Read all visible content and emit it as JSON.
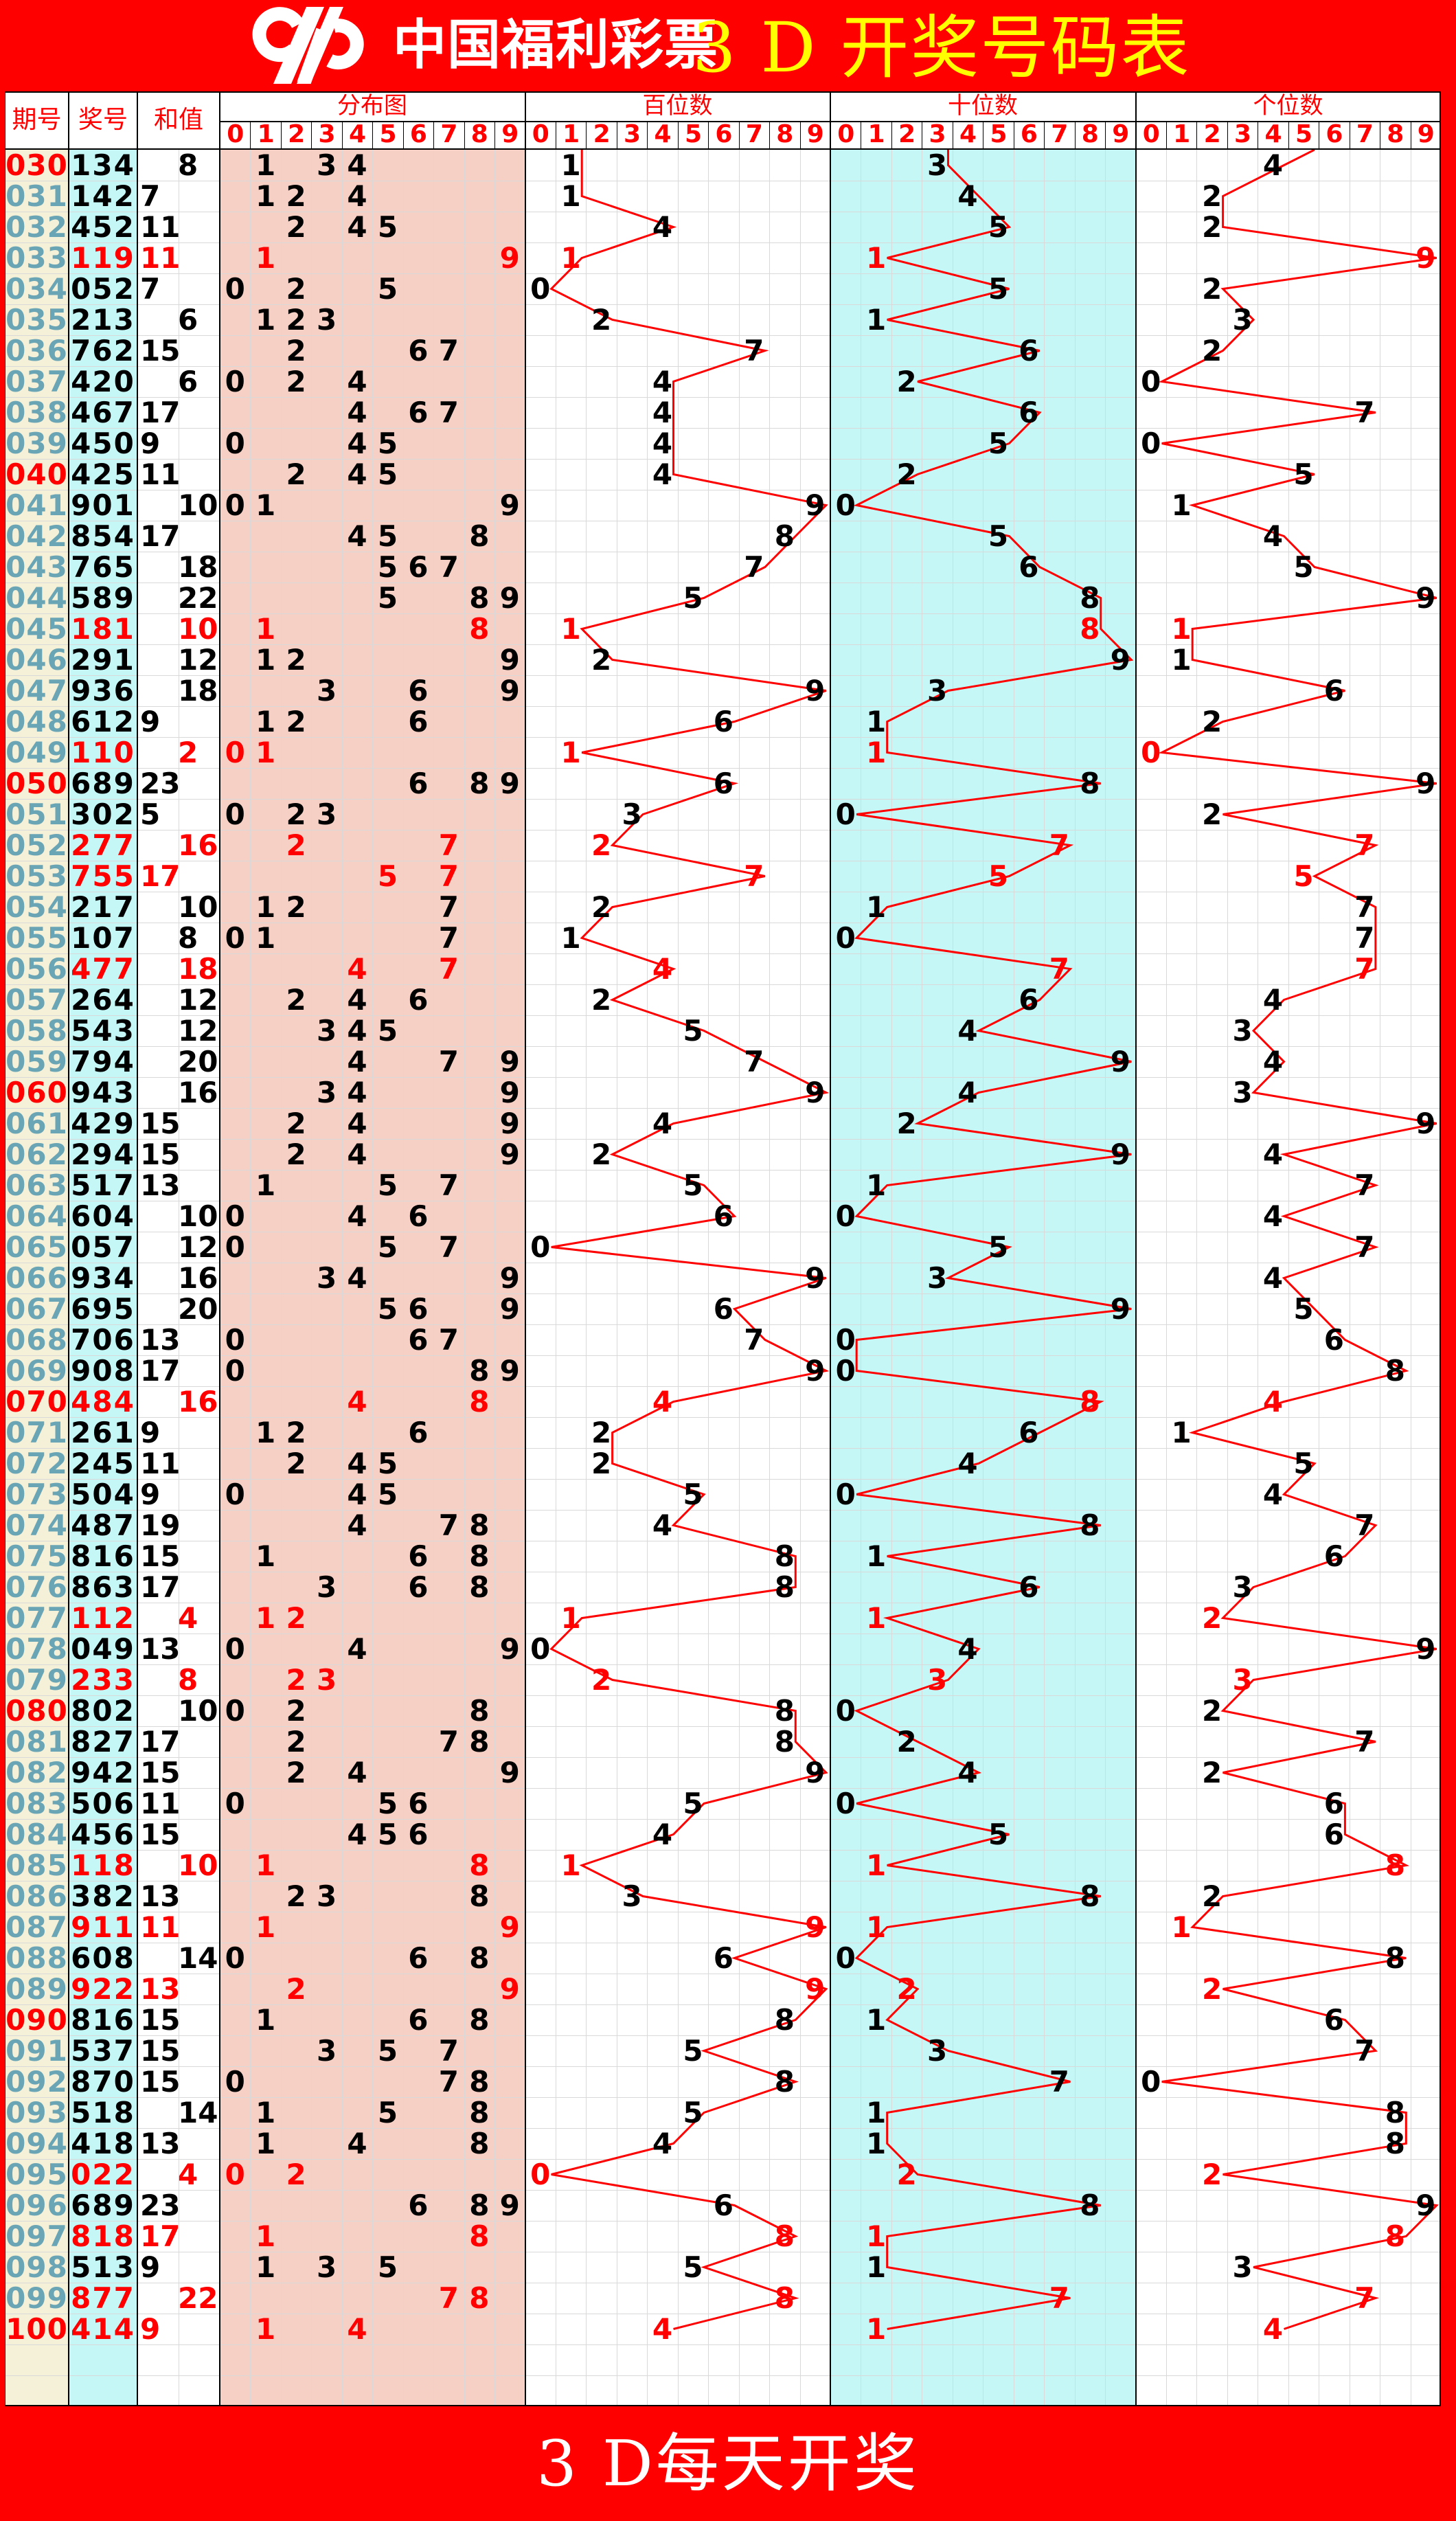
{
  "banner": {
    "brand": "中国福利彩票",
    "title": "3 D 开奖号码表"
  },
  "footer": {
    "text": "3 D每天开奖"
  },
  "columns": {
    "period": "期号",
    "number": "奖号",
    "sum": "和值",
    "dist": "分布图",
    "hundreds": "百位数",
    "tens": "十位数",
    "units": "个位数"
  },
  "digit_headers": [
    "0",
    "1",
    "2",
    "3",
    "4",
    "5",
    "6",
    "7",
    "8",
    "9"
  ],
  "colors": {
    "banner_red": "#ff0000",
    "title_yellow": "#ffff00",
    "special_red": "#ff0000",
    "period_teal": "#6aa5b5",
    "period_bg": "#f5f0d8",
    "number_bg": "#c6f7f7",
    "dist_bg": "#f6d0c4",
    "tens_bg": "#c6f7f7",
    "grid_line": "#d9d9d9",
    "trend_red": "#ff0000",
    "black": "#000000"
  },
  "stub_prev_digits": {
    "hundreds": 1,
    "tens": 3,
    "units": 6
  },
  "rows_format": [
    "period",
    "number",
    "sum"
  ],
  "rows": [
    [
      "030",
      "134",
      8
    ],
    [
      "031",
      "142",
      7
    ],
    [
      "032",
      "452",
      11
    ],
    [
      "033",
      "119",
      11
    ],
    [
      "034",
      "052",
      7
    ],
    [
      "035",
      "213",
      6
    ],
    [
      "036",
      "762",
      15
    ],
    [
      "037",
      "420",
      6
    ],
    [
      "038",
      "467",
      17
    ],
    [
      "039",
      "450",
      9
    ],
    [
      "040",
      "425",
      11
    ],
    [
      "041",
      "901",
      10
    ],
    [
      "042",
      "854",
      17
    ],
    [
      "043",
      "765",
      18
    ],
    [
      "044",
      "589",
      22
    ],
    [
      "045",
      "181",
      10
    ],
    [
      "046",
      "291",
      12
    ],
    [
      "047",
      "936",
      18
    ],
    [
      "048",
      "612",
      9
    ],
    [
      "049",
      "110",
      2
    ],
    [
      "050",
      "689",
      23
    ],
    [
      "051",
      "302",
      5
    ],
    [
      "052",
      "277",
      16
    ],
    [
      "053",
      "755",
      17
    ],
    [
      "054",
      "217",
      10
    ],
    [
      "055",
      "107",
      8
    ],
    [
      "056",
      "477",
      18
    ],
    [
      "057",
      "264",
      12
    ],
    [
      "058",
      "543",
      12
    ],
    [
      "059",
      "794",
      20
    ],
    [
      "060",
      "943",
      16
    ],
    [
      "061",
      "429",
      15
    ],
    [
      "062",
      "294",
      15
    ],
    [
      "063",
      "517",
      13
    ],
    [
      "064",
      "604",
      10
    ],
    [
      "065",
      "057",
      12
    ],
    [
      "066",
      "934",
      16
    ],
    [
      "067",
      "695",
      20
    ],
    [
      "068",
      "706",
      13
    ],
    [
      "069",
      "908",
      17
    ],
    [
      "070",
      "484",
      16
    ],
    [
      "071",
      "261",
      9
    ],
    [
      "072",
      "245",
      11
    ],
    [
      "073",
      "504",
      9
    ],
    [
      "074",
      "487",
      19
    ],
    [
      "075",
      "816",
      15
    ],
    [
      "076",
      "863",
      17
    ],
    [
      "077",
      "112",
      4
    ],
    [
      "078",
      "049",
      13
    ],
    [
      "079",
      "233",
      8
    ],
    [
      "080",
      "802",
      10
    ],
    [
      "081",
      "827",
      17
    ],
    [
      "082",
      "942",
      15
    ],
    [
      "083",
      "506",
      11
    ],
    [
      "084",
      "456",
      15
    ],
    [
      "085",
      "118",
      10
    ],
    [
      "086",
      "382",
      13
    ],
    [
      "087",
      "911",
      11
    ],
    [
      "088",
      "608",
      14
    ],
    [
      "089",
      "922",
      13
    ],
    [
      "090",
      "816",
      15
    ],
    [
      "091",
      "537",
      15
    ],
    [
      "092",
      "870",
      15
    ],
    [
      "093",
      "518",
      14
    ],
    [
      "094",
      "418",
      13
    ],
    [
      "095",
      "022",
      4
    ],
    [
      "096",
      "689",
      23
    ],
    [
      "097",
      "818",
      17
    ],
    [
      "098",
      "513",
      9
    ],
    [
      "099",
      "877",
      22
    ],
    [
      "100",
      "414",
      9
    ]
  ],
  "special_periods": [
    "033",
    "045",
    "049",
    "052",
    "053",
    "056",
    "070",
    "077",
    "079",
    "085",
    "087",
    "089",
    "095",
    "097",
    "099",
    "100"
  ],
  "chart_data": {
    "type": "line",
    "title": "3 D 开奖号码表",
    "categories": [
      "030",
      "031",
      "032",
      "033",
      "034",
      "035",
      "036",
      "037",
      "038",
      "039",
      "040",
      "041",
      "042",
      "043",
      "044",
      "045",
      "046",
      "047",
      "048",
      "049",
      "050",
      "051",
      "052",
      "053",
      "054",
      "055",
      "056",
      "057",
      "058",
      "059",
      "060",
      "061",
      "062",
      "063",
      "064",
      "065",
      "066",
      "067",
      "068",
      "069",
      "070",
      "071",
      "072",
      "073",
      "074",
      "075",
      "076",
      "077",
      "078",
      "079",
      "080",
      "081",
      "082",
      "083",
      "084",
      "085",
      "086",
      "087",
      "088",
      "089",
      "090",
      "091",
      "092",
      "093",
      "094",
      "095",
      "096",
      "097",
      "098",
      "099",
      "100"
    ],
    "series": [
      {
        "name": "百位数",
        "values": [
          1,
          1,
          4,
          1,
          0,
          2,
          7,
          4,
          4,
          4,
          4,
          9,
          8,
          7,
          5,
          1,
          2,
          9,
          6,
          1,
          6,
          3,
          2,
          7,
          2,
          1,
          4,
          2,
          5,
          7,
          9,
          4,
          2,
          5,
          6,
          0,
          9,
          6,
          7,
          9,
          4,
          2,
          2,
          5,
          4,
          8,
          8,
          1,
          0,
          2,
          8,
          8,
          9,
          5,
          4,
          1,
          3,
          9,
          6,
          9,
          8,
          5,
          8,
          5,
          4,
          0,
          6,
          8,
          5,
          8,
          4
        ]
      },
      {
        "name": "十位数",
        "values": [
          3,
          4,
          5,
          1,
          5,
          1,
          6,
          2,
          6,
          5,
          2,
          0,
          5,
          6,
          8,
          8,
          9,
          3,
          1,
          1,
          8,
          0,
          7,
          5,
          1,
          0,
          7,
          6,
          4,
          9,
          4,
          2,
          9,
          1,
          0,
          5,
          3,
          9,
          0,
          0,
          8,
          6,
          4,
          0,
          8,
          1,
          6,
          1,
          4,
          3,
          0,
          2,
          4,
          0,
          5,
          1,
          8,
          1,
          0,
          2,
          1,
          3,
          7,
          1,
          1,
          2,
          8,
          1,
          1,
          7,
          1
        ]
      },
      {
        "name": "个位数",
        "values": [
          4,
          2,
          2,
          9,
          2,
          3,
          2,
          0,
          7,
          0,
          5,
          1,
          4,
          5,
          9,
          1,
          1,
          6,
          2,
          0,
          9,
          2,
          7,
          5,
          7,
          7,
          7,
          4,
          3,
          4,
          3,
          9,
          4,
          7,
          4,
          7,
          4,
          5,
          6,
          8,
          4,
          1,
          5,
          4,
          7,
          6,
          3,
          2,
          9,
          3,
          2,
          7,
          2,
          6,
          6,
          8,
          2,
          1,
          8,
          2,
          6,
          7,
          0,
          8,
          8,
          2,
          9,
          8,
          3,
          7,
          4
        ]
      },
      {
        "name": "和值",
        "values": [
          8,
          7,
          11,
          11,
          7,
          6,
          15,
          6,
          17,
          9,
          11,
          10,
          17,
          18,
          22,
          10,
          12,
          18,
          9,
          2,
          23,
          5,
          16,
          17,
          10,
          8,
          18,
          12,
          12,
          20,
          16,
          15,
          15,
          13,
          10,
          12,
          16,
          20,
          13,
          17,
          16,
          9,
          11,
          9,
          19,
          15,
          17,
          4,
          13,
          8,
          10,
          17,
          15,
          11,
          15,
          10,
          13,
          11,
          14,
          13,
          15,
          15,
          15,
          14,
          13,
          4,
          23,
          17,
          9,
          22,
          9
        ]
      }
    ],
    "ylim": [
      0,
      9
    ],
    "grid": true,
    "legend_position": "none"
  }
}
